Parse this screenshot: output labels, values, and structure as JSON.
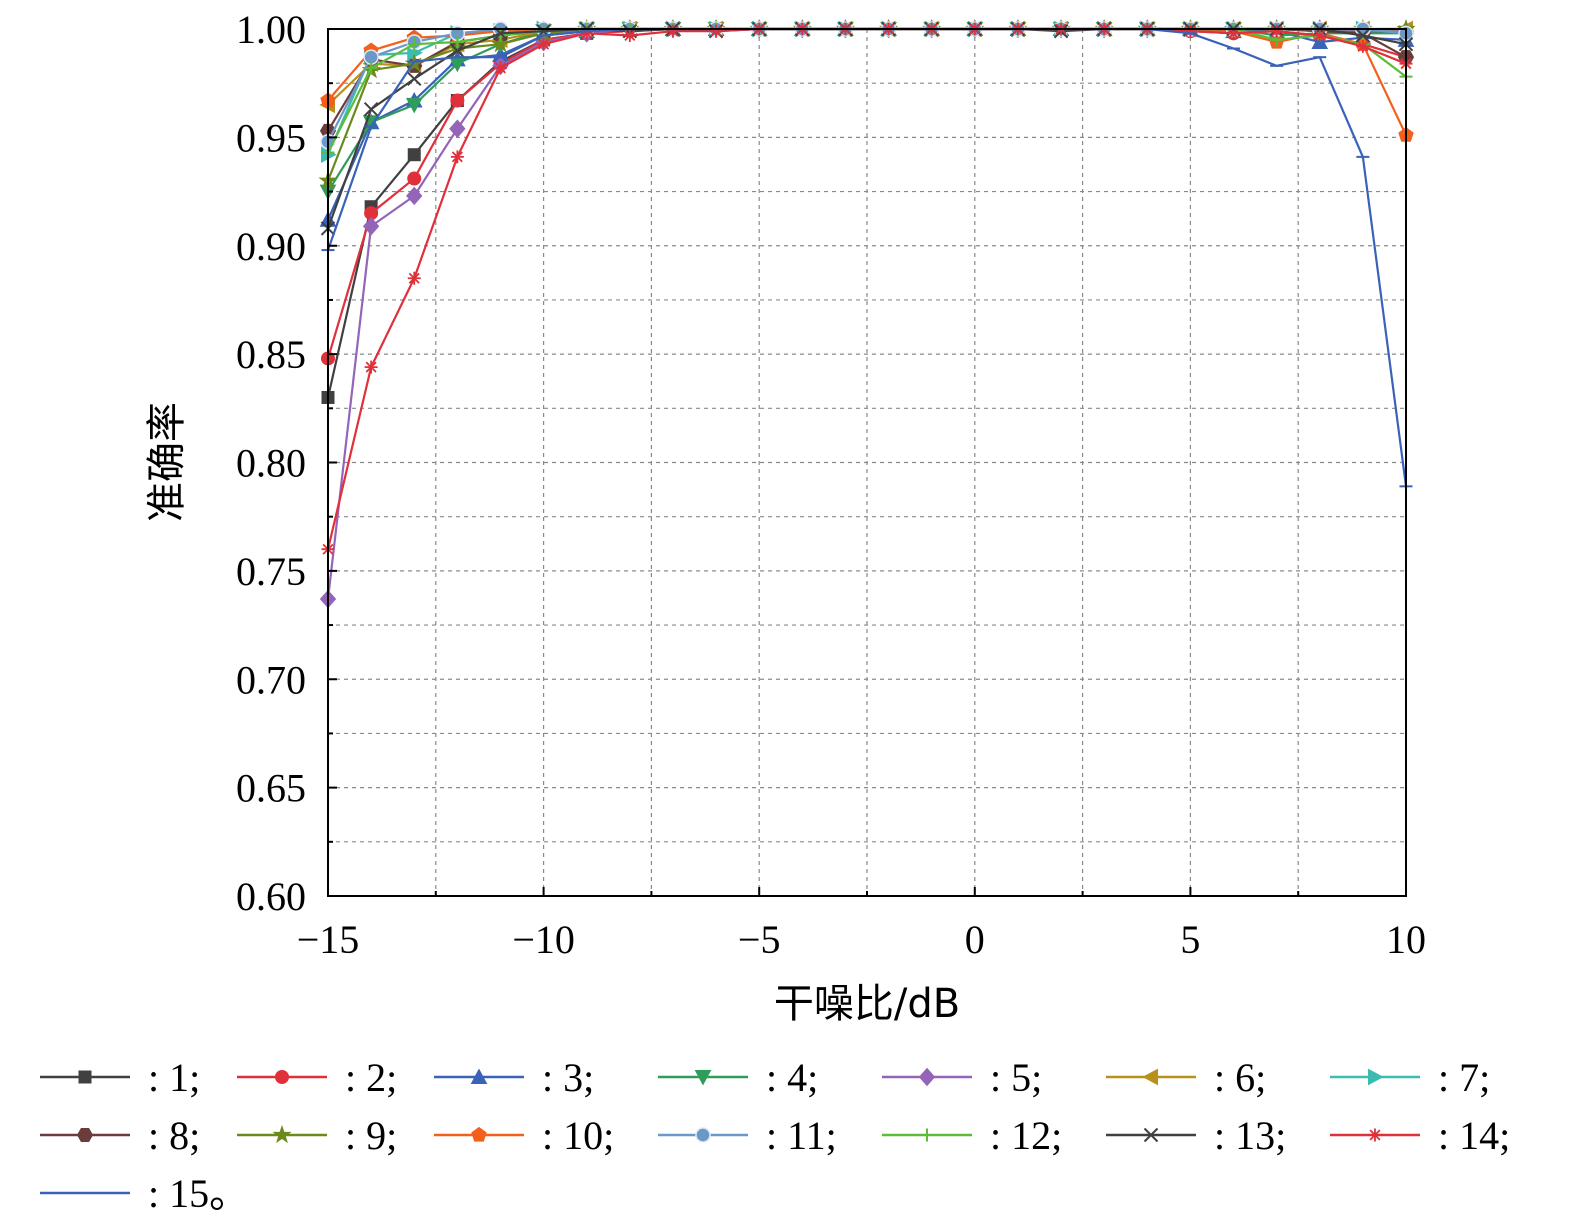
{
  "chart_data": {
    "type": "line",
    "title": "",
    "xlabel": "干噪比/dB",
    "ylabel": "准确率",
    "xlim": [
      -15,
      10
    ],
    "ylim": [
      0.6,
      1.0
    ],
    "xticks": [
      -15,
      -10,
      -5,
      0,
      5,
      10
    ],
    "xtick_labels": [
      "−15",
      "−10",
      "−5",
      "0",
      "5",
      "10"
    ],
    "yticks": [
      0.6,
      0.65,
      0.7,
      0.75,
      0.8,
      0.85,
      0.9,
      0.95,
      1.0
    ],
    "ytick_labels": [
      "0.60",
      "0.65",
      "0.70",
      "0.75",
      "0.80",
      "0.85",
      "0.90",
      "0.95",
      "1.00"
    ],
    "grid": true,
    "legend_position": "bottom",
    "x": [
      -15,
      -14,
      -13,
      -12,
      -11,
      -10,
      -9,
      -8,
      -7,
      -6,
      -5,
      -4,
      -3,
      -2,
      -1,
      0,
      1,
      2,
      3,
      4,
      5,
      6,
      7,
      8,
      9,
      10
    ],
    "series": [
      {
        "name": ": 1;",
        "color": "#404040",
        "marker": "square",
        "values": [
          0.83,
          0.918,
          0.942,
          0.967,
          0.985,
          0.995,
          0.998,
          1.0,
          1.0,
          1.0,
          1.0,
          1.0,
          1.0,
          1.0,
          1.0,
          1.0,
          1.0,
          1.0,
          1.0,
          1.0,
          1.0,
          1.0,
          1.0,
          0.999,
          0.999,
          0.998
        ]
      },
      {
        "name": ": 2;",
        "color": "#e0303a",
        "marker": "circle",
        "values": [
          0.848,
          0.915,
          0.931,
          0.967,
          0.984,
          0.995,
          0.998,
          0.999,
          1.0,
          1.0,
          1.0,
          1.0,
          1.0,
          1.0,
          1.0,
          1.0,
          1.0,
          1.0,
          1.0,
          1.0,
          0.999,
          0.998,
          0.999,
          0.997,
          0.993,
          0.987
        ]
      },
      {
        "name": ": 3;",
        "color": "#3a62b8",
        "marker": "triangle-up",
        "values": [
          0.912,
          0.957,
          0.967,
          0.986,
          0.988,
          0.997,
          0.999,
          1.0,
          1.0,
          1.0,
          1.0,
          1.0,
          1.0,
          1.0,
          1.0,
          1.0,
          1.0,
          1.0,
          1.0,
          1.0,
          1.0,
          0.999,
          0.999,
          0.994,
          0.996,
          0.995
        ]
      },
      {
        "name": ": 4;",
        "color": "#2e9c5a",
        "marker": "triangle-down",
        "values": [
          0.925,
          0.957,
          0.965,
          0.984,
          0.993,
          0.999,
          1.0,
          1.0,
          1.0,
          1.0,
          1.0,
          1.0,
          1.0,
          1.0,
          1.0,
          1.0,
          1.0,
          1.0,
          1.0,
          1.0,
          1.0,
          1.0,
          0.997,
          0.998,
          0.998,
          0.998
        ]
      },
      {
        "name": ": 5;",
        "color": "#9464b8",
        "marker": "diamond",
        "values": [
          0.737,
          0.909,
          0.923,
          0.954,
          0.983,
          0.994,
          0.998,
          1.0,
          1.0,
          1.0,
          1.0,
          1.0,
          1.0,
          1.0,
          1.0,
          1.0,
          1.0,
          1.0,
          1.0,
          1.0,
          1.0,
          1.0,
          1.0,
          1.0,
          0.999,
          0.999
        ]
      },
      {
        "name": ": 6;",
        "color": "#b8901c",
        "marker": "triangle-left",
        "values": [
          0.965,
          0.984,
          0.983,
          0.993,
          0.995,
          0.999,
          1.0,
          1.0,
          1.0,
          1.0,
          1.0,
          1.0,
          1.0,
          1.0,
          1.0,
          1.0,
          1.0,
          1.0,
          1.0,
          1.0,
          1.0,
          1.0,
          1.0,
          1.0,
          1.0,
          1.0
        ]
      },
      {
        "name": ": 7;",
        "color": "#3cbcb0",
        "marker": "triangle-right",
        "values": [
          0.942,
          0.988,
          0.989,
          0.998,
          0.999,
          1.0,
          1.0,
          1.0,
          1.0,
          1.0,
          1.0,
          1.0,
          1.0,
          1.0,
          1.0,
          1.0,
          1.0,
          1.0,
          1.0,
          1.0,
          1.0,
          1.0,
          1.0,
          1.0,
          1.0,
          0.998
        ]
      },
      {
        "name": ": 8;",
        "color": "#6b3c3c",
        "marker": "hexagon",
        "values": [
          0.953,
          0.986,
          0.983,
          0.994,
          0.997,
          0.999,
          1.0,
          1.0,
          1.0,
          1.0,
          1.0,
          1.0,
          1.0,
          1.0,
          1.0,
          1.0,
          1.0,
          1.0,
          1.0,
          1.0,
          1.0,
          1.0,
          1.0,
          0.999,
          0.998,
          0.987
        ]
      },
      {
        "name": ": 9;",
        "color": "#6a8a1c",
        "marker": "star",
        "values": [
          0.93,
          0.981,
          0.984,
          0.991,
          0.993,
          0.998,
          1.0,
          1.0,
          1.0,
          1.0,
          1.0,
          1.0,
          1.0,
          1.0,
          1.0,
          1.0,
          1.0,
          1.0,
          1.0,
          1.0,
          1.0,
          1.0,
          1.0,
          1.0,
          1.0,
          1.0
        ]
      },
      {
        "name": ": 10;",
        "color": "#f2601c",
        "marker": "pentagon",
        "values": [
          0.967,
          0.99,
          0.996,
          0.997,
          0.999,
          1.0,
          1.0,
          1.0,
          1.0,
          1.0,
          1.0,
          1.0,
          1.0,
          1.0,
          1.0,
          1.0,
          1.0,
          1.0,
          1.0,
          1.0,
          1.0,
          0.999,
          0.994,
          0.998,
          0.993,
          0.951
        ]
      },
      {
        "name": ": 11;",
        "color": "#6b98c8",
        "marker": "dot",
        "values": [
          0.948,
          0.987,
          0.994,
          0.998,
          1.0,
          1.0,
          1.0,
          1.0,
          1.0,
          1.0,
          1.0,
          1.0,
          1.0,
          1.0,
          1.0,
          1.0,
          1.0,
          1.0,
          1.0,
          1.0,
          1.0,
          1.0,
          1.0,
          1.0,
          1.0,
          0.998
        ]
      },
      {
        "name": ": 12;",
        "color": "#5cbc38",
        "marker": "plus",
        "values": [
          0.943,
          0.982,
          0.993,
          0.994,
          0.997,
          0.999,
          1.0,
          1.0,
          1.0,
          1.0,
          1.0,
          1.0,
          1.0,
          1.0,
          1.0,
          1.0,
          1.0,
          1.0,
          1.0,
          1.0,
          1.0,
          1.0,
          0.995,
          0.997,
          0.993,
          0.978
        ]
      },
      {
        "name": ": 13;",
        "color": "#404040",
        "marker": "x",
        "values": [
          0.908,
          0.963,
          0.977,
          0.99,
          0.998,
          0.999,
          1.0,
          0.999,
          1.0,
          0.999,
          1.0,
          1.0,
          1.0,
          1.0,
          1.0,
          1.0,
          1.0,
          0.999,
          1.0,
          1.0,
          1.0,
          1.0,
          1.0,
          1.0,
          0.997,
          0.993
        ]
      },
      {
        "name": ": 14;",
        "color": "#e0303a",
        "marker": "asterisk",
        "values": [
          0.76,
          0.844,
          0.885,
          0.941,
          0.982,
          0.993,
          0.998,
          0.997,
          0.999,
          0.999,
          1.0,
          1.0,
          1.0,
          1.0,
          1.0,
          1.0,
          1.0,
          1.0,
          1.0,
          1.0,
          0.999,
          0.998,
          0.999,
          0.997,
          0.992,
          0.984
        ]
      },
      {
        "name": ": 15。",
        "color": "#3a62b8",
        "marker": "dash",
        "values": [
          0.898,
          0.955,
          0.985,
          0.987,
          0.987,
          0.997,
          0.999,
          1.0,
          1.0,
          1.0,
          1.0,
          1.0,
          1.0,
          1.0,
          1.0,
          1.0,
          1.0,
          1.0,
          1.0,
          1.0,
          0.998,
          0.991,
          0.983,
          0.987,
          0.941,
          0.789
        ]
      }
    ]
  }
}
